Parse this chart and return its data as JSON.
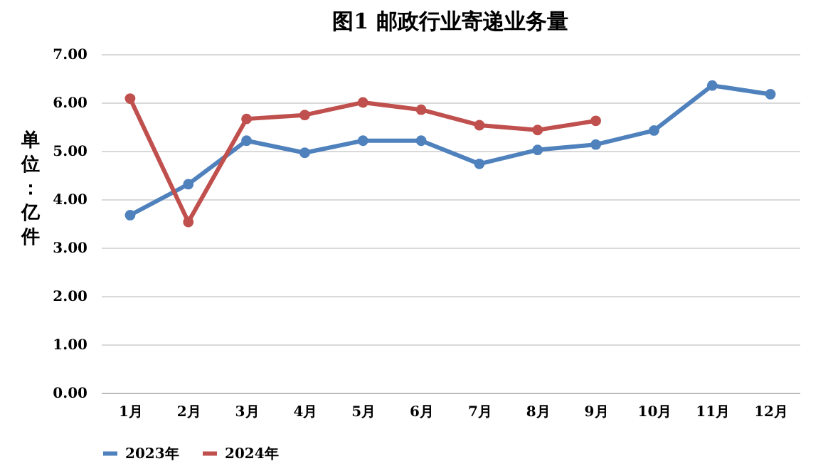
{
  "chart_data": {
    "type": "line",
    "title": "图1  邮政行业寄递业务量",
    "ylabel": "单位：亿件",
    "categories": [
      "1月",
      "2月",
      "3月",
      "4月",
      "5月",
      "6月",
      "7月",
      "8月",
      "9月",
      "10月",
      "11月",
      "12月"
    ],
    "series": [
      {
        "name": "2023年",
        "color": "#4f81bd",
        "values": [
          3.67,
          4.31,
          5.21,
          4.96,
          5.21,
          5.21,
          4.73,
          5.02,
          5.13,
          5.42,
          6.35,
          6.17
        ]
      },
      {
        "name": "2024年",
        "color": "#c0504d",
        "values": [
          6.08,
          3.53,
          5.66,
          5.74,
          6.0,
          5.85,
          5.53,
          5.43,
          5.62,
          null,
          null,
          null
        ]
      }
    ],
    "ylim": [
      0,
      7
    ],
    "yticks": [
      {
        "value": 0,
        "label": "0.00"
      },
      {
        "value": 1,
        "label": "1.00"
      },
      {
        "value": 2,
        "label": "2.00"
      },
      {
        "value": 3,
        "label": "3.00"
      },
      {
        "value": 4,
        "label": "4.00"
      },
      {
        "value": 5,
        "label": "5.00"
      },
      {
        "value": 6,
        "label": "6.00"
      },
      {
        "value": 7,
        "label": "7.00"
      }
    ],
    "grid": "y",
    "legend": "bottom",
    "marker": "circle",
    "line_style": "solid"
  }
}
